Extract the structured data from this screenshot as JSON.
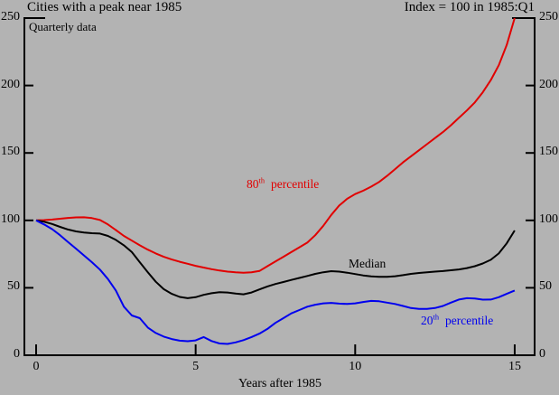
{
  "chart_data": {
    "type": "line",
    "title": "Cities with a peak near 1985",
    "index_note": "Index = 100 in 1985:Q1",
    "inner_note": "Quarterly data",
    "xlabel": "Years after 1985",
    "xlim": [
      -0.37,
      15.63
    ],
    "ylim": [
      0,
      250
    ],
    "xticks": [
      0,
      5,
      10,
      15
    ],
    "yticks": [
      0,
      50,
      100,
      150,
      200,
      250
    ],
    "ytick_sides": [
      "left",
      "right"
    ],
    "grid": false,
    "legend_position": "inline-labels",
    "background_color": "#b3b3b3",
    "axis_color": "#000000",
    "x": [
      0,
      0.25,
      0.5,
      0.75,
      1,
      1.25,
      1.5,
      1.75,
      2,
      2.25,
      2.5,
      2.75,
      3,
      3.25,
      3.5,
      3.75,
      4,
      4.25,
      4.5,
      4.75,
      5,
      5.25,
      5.5,
      5.75,
      6,
      6.25,
      6.5,
      6.75,
      7,
      7.25,
      7.5,
      7.75,
      8,
      8.25,
      8.5,
      8.75,
      9,
      9.25,
      9.5,
      9.75,
      10,
      10.25,
      10.5,
      10.75,
      11,
      11.25,
      11.5,
      11.75,
      12,
      12.25,
      12.5,
      12.75,
      13,
      13.25,
      13.5,
      13.75,
      14,
      14.25,
      14.5,
      14.75,
      15
    ],
    "series": [
      {
        "name": "80th percentile",
        "label_parts": {
          "base": "80",
          "sup": "th",
          "rest": "percentile"
        },
        "color": "#e10000",
        "values": [
          100,
          100.2,
          100.6,
          101.2,
          101.8,
          102.2,
          102.3,
          101.7,
          100.3,
          97,
          92.8,
          88.5,
          85,
          81.5,
          78.3,
          75.5,
          73,
          71,
          69.3,
          67.8,
          66.3,
          65,
          63.8,
          62.8,
          62,
          61.5,
          61.2,
          61.5,
          62.5,
          66,
          69.5,
          73,
          76.5,
          80,
          83.5,
          89,
          96,
          104,
          111,
          116,
          119.5,
          122,
          125,
          128.5,
          133,
          138,
          143,
          147.5,
          152,
          156.5,
          161,
          165.5,
          170.5,
          176,
          181.5,
          187.5,
          195,
          204,
          215,
          230,
          250
        ]
      },
      {
        "name": "Median",
        "label_parts": {
          "base": "Median",
          "sup": "",
          "rest": ""
        },
        "color": "#000000",
        "values": [
          100,
          99,
          97.3,
          95.2,
          93.2,
          91.8,
          91,
          90.5,
          90.2,
          88.5,
          85.5,
          81.5,
          76.5,
          69,
          61.5,
          54.5,
          49,
          45.5,
          43.2,
          42.3,
          43,
          44.8,
          46,
          46.8,
          46.5,
          45.7,
          45.2,
          46.5,
          48.8,
          51,
          52.8,
          54.3,
          55.8,
          57.3,
          58.8,
          60.3,
          61.5,
          62.3,
          62,
          61.2,
          60.2,
          59.2,
          58.5,
          58.2,
          58.2,
          58.6,
          59.4,
          60.3,
          61,
          61.5,
          62,
          62.4,
          63,
          63.6,
          64.6,
          66,
          68,
          70.8,
          75.5,
          83,
          92.5
        ]
      },
      {
        "name": "20th percentile",
        "label_parts": {
          "base": "20",
          "sup": "th",
          "rest": "percentile"
        },
        "color": "#0000ee",
        "values": [
          100,
          97,
          93.5,
          89,
          84,
          79,
          74,
          69,
          63.5,
          56.5,
          48,
          36,
          29.5,
          27.5,
          20.5,
          16.5,
          13.8,
          12,
          10.8,
          10.4,
          11,
          13.5,
          10.5,
          8.7,
          8.4,
          9.5,
          11.2,
          13.5,
          16,
          19.5,
          24,
          27.5,
          31,
          33.5,
          36,
          37.5,
          38.5,
          38.8,
          38.3,
          38,
          38.5,
          39.5,
          40.3,
          40,
          39,
          38,
          36.5,
          35,
          34.4,
          34.4,
          35,
          36.5,
          39,
          41.3,
          42.3,
          42,
          41.2,
          41.3,
          43,
          45.5,
          48
        ]
      }
    ]
  }
}
